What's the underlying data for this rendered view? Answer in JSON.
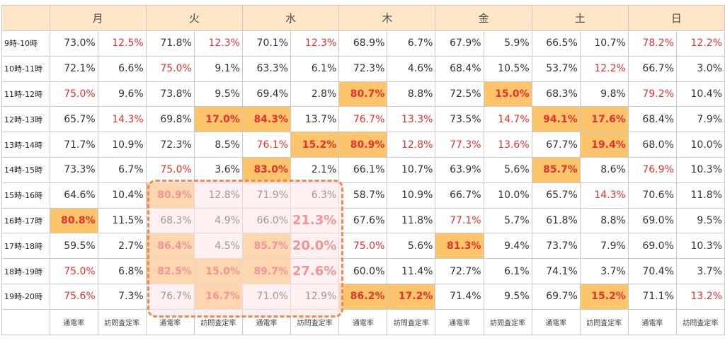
{
  "days": [
    "月",
    "火",
    "水",
    "木",
    "金",
    "土",
    "日"
  ],
  "metrics": [
    "通電率",
    "訪問査定率"
  ],
  "rows": [
    {
      "time": "9時-10時",
      "cells": [
        "73.0%",
        "12.5%",
        "71.8%",
        "12.3%",
        "70.1%",
        "12.3%",
        "68.9%",
        "6.7%",
        "67.9%",
        "5.9%",
        "66.5%",
        "10.7%",
        "78.2%",
        "12.2%"
      ]
    },
    {
      "time": "10時-11時",
      "cells": [
        "72.1%",
        "6.6%",
        "75.0%",
        "9.1%",
        "63.3%",
        "6.1%",
        "72.3%",
        "4.6%",
        "68.4%",
        "10.5%",
        "53.7%",
        "12.2%",
        "66.7%",
        "3.0%"
      ]
    },
    {
      "time": "11時-12時",
      "cells": [
        "75.0%",
        "9.6%",
        "73.8%",
        "9.5%",
        "69.4%",
        "2.8%",
        "80.7%",
        "8.8%",
        "72.5%",
        "15.0%",
        "68.3%",
        "9.8%",
        "79.2%",
        "10.4%"
      ]
    },
    {
      "time": "12時-13時",
      "cells": [
        "65.7%",
        "14.3%",
        "69.8%",
        "17.0%",
        "84.3%",
        "13.7%",
        "76.7%",
        "13.3%",
        "73.5%",
        "14.7%",
        "94.1%",
        "17.6%",
        "68.4%",
        "7.9%"
      ]
    },
    {
      "time": "13時-14時",
      "cells": [
        "71.7%",
        "10.9%",
        "72.3%",
        "8.5%",
        "76.1%",
        "15.2%",
        "80.9%",
        "12.8%",
        "77.3%",
        "13.6%",
        "67.7%",
        "19.4%",
        "68.0%",
        "10.0%"
      ]
    },
    {
      "time": "14時-15時",
      "cells": [
        "73.3%",
        "6.7%",
        "75.0%",
        "3.6%",
        "83.0%",
        "2.1%",
        "66.1%",
        "10.7%",
        "63.9%",
        "5.6%",
        "85.7%",
        "8.6%",
        "76.9%",
        "10.3%"
      ]
    },
    {
      "time": "15時-16時",
      "cells": [
        "64.6%",
        "10.4%",
        "80.9%",
        "12.8%",
        "71.9%",
        "6.3%",
        "58.7%",
        "10.9%",
        "66.7%",
        "10.0%",
        "65.7%",
        "14.3%",
        "70.6%",
        "11.8%"
      ]
    },
    {
      "time": "16時-17時",
      "cells": [
        "80.8%",
        "11.5%",
        "68.3%",
        "4.9%",
        "66.0%",
        "21.3%",
        "67.6%",
        "11.8%",
        "77.1%",
        "5.7%",
        "61.8%",
        "8.8%",
        "69.0%",
        "9.5%"
      ]
    },
    {
      "time": "17時-18時",
      "cells": [
        "59.5%",
        "2.7%",
        "86.4%",
        "4.5%",
        "85.7%",
        "20.0%",
        "75.0%",
        "5.6%",
        "81.3%",
        "9.4%",
        "73.7%",
        "7.9%",
        "69.0%",
        "10.3%"
      ]
    },
    {
      "time": "18時-19時",
      "cells": [
        "75.0%",
        "6.8%",
        "82.5%",
        "15.0%",
        "89.7%",
        "27.6%",
        "60.0%",
        "11.4%",
        "72.7%",
        "6.1%",
        "74.1%",
        "3.7%",
        "70.4%",
        "3.7%"
      ]
    },
    {
      "time": "19時-20時",
      "cells": [
        "75.6%",
        "7.3%",
        "76.7%",
        "16.7%",
        "71.0%",
        "12.9%",
        "86.2%",
        "17.2%",
        "71.4%",
        "9.5%",
        "69.7%",
        "15.2%",
        "71.1%",
        "13.2%"
      ]
    }
  ],
  "red_cells": [
    [
      0,
      1
    ],
    [
      0,
      3
    ],
    [
      0,
      5
    ],
    [
      0,
      12
    ],
    [
      0,
      13
    ],
    [
      1,
      2
    ],
    [
      1,
      11
    ],
    [
      2,
      0
    ],
    [
      2,
      12
    ],
    [
      3,
      1
    ],
    [
      3,
      6
    ],
    [
      3,
      7
    ],
    [
      3,
      9
    ],
    [
      4,
      4
    ],
    [
      4,
      7
    ],
    [
      4,
      8
    ],
    [
      4,
      9
    ],
    [
      5,
      2
    ],
    [
      5,
      12
    ],
    [
      6,
      11
    ],
    [
      7,
      8
    ],
    [
      8,
      6
    ],
    [
      9,
      0
    ],
    [
      10,
      0
    ],
    [
      10,
      13
    ]
  ],
  "highlight_cells": [
    [
      2,
      6
    ],
    [
      2,
      9
    ],
    [
      3,
      3
    ],
    [
      3,
      4
    ],
    [
      3,
      10
    ],
    [
      3,
      11
    ],
    [
      4,
      5
    ],
    [
      4,
      6
    ],
    [
      4,
      11
    ],
    [
      5,
      4
    ],
    [
      5,
      10
    ],
    [
      6,
      2
    ],
    [
      7,
      0
    ],
    [
      8,
      2
    ],
    [
      8,
      4
    ],
    [
      8,
      8
    ],
    [
      9,
      2
    ],
    [
      9,
      3
    ],
    [
      9,
      4
    ],
    [
      10,
      3
    ],
    [
      10,
      6
    ],
    [
      10,
      7
    ],
    [
      10,
      11
    ]
  ],
  "big_cells": [
    [
      7,
      5
    ],
    [
      8,
      5
    ],
    [
      9,
      5
    ]
  ],
  "colors": {
    "header_bg": "#fde7c8",
    "highlight_bg": "#fcc46b",
    "red_text": "#e5322d",
    "dashed_box": "#ef8a55"
  }
}
